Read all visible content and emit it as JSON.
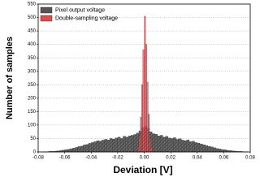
{
  "chart_data": {
    "type": "histogram",
    "x_label": "Deviation [V]",
    "y_label": "Number of samples",
    "xlim": [
      -0.08,
      0.08
    ],
    "ylim": [
      0,
      550
    ],
    "xticks": [
      -0.08,
      -0.06,
      -0.04,
      -0.02,
      {
        "value": 0,
        "label": "0.00"
      },
      0.02,
      0.04,
      0.06,
      0.08
    ],
    "yticks": [
      0,
      50,
      100,
      150,
      200,
      250,
      300,
      350,
      400,
      450,
      500,
      550
    ],
    "grid": true,
    "legend": "upper left",
    "series": [
      {
        "name": "Pixel output voltage",
        "color": "#555555",
        "bins": [
          -0.08,
          -0.078,
          -0.076,
          -0.074,
          -0.072,
          -0.07,
          -0.068,
          -0.066,
          -0.064,
          -0.062,
          -0.06,
          -0.058,
          -0.056,
          -0.054,
          -0.052,
          -0.05,
          -0.048,
          -0.046,
          -0.044,
          -0.042,
          -0.04,
          -0.038,
          -0.036,
          -0.034,
          -0.032,
          -0.03,
          -0.028,
          -0.026,
          -0.024,
          -0.022,
          -0.02,
          -0.018,
          -0.016,
          -0.014,
          -0.012,
          -0.01,
          -0.008,
          -0.006,
          -0.004,
          -0.002,
          0,
          0.002,
          0.004,
          0.006,
          0.008,
          0.01,
          0.012,
          0.014,
          0.016,
          0.018,
          0.02,
          0.022,
          0.024,
          0.026,
          0.028,
          0.03,
          0.032,
          0.034,
          0.036,
          0.038,
          0.04,
          0.042,
          0.044,
          0.046,
          0.048,
          0.05,
          0.052,
          0.054,
          0.056,
          0.058,
          0.06,
          0.062,
          0.064,
          0.066,
          0.068,
          0.07,
          0.072,
          0.074,
          0.076,
          0.078,
          0.08
        ],
        "values": [
          0,
          0,
          1,
          1,
          2,
          2,
          3,
          4,
          5,
          7,
          8,
          10,
          12,
          14,
          17,
          20,
          22,
          26,
          28,
          32,
          35,
          38,
          42,
          40,
          44,
          47,
          45,
          50,
          48,
          52,
          55,
          50,
          58,
          55,
          60,
          62,
          65,
          70,
          78,
          90,
          95,
          88,
          75,
          68,
          66,
          60,
          62,
          55,
          58,
          52,
          50,
          53,
          47,
          49,
          44,
          42,
          45,
          38,
          40,
          35,
          33,
          30,
          27,
          24,
          21,
          19,
          16,
          13,
          11,
          9,
          8,
          6,
          5,
          4,
          3,
          2,
          2,
          1,
          1,
          0
        ]
      },
      {
        "name": "Double-sampling voltage",
        "color": "#e8474c",
        "bins": [
          -0.006,
          -0.005,
          -0.004,
          -0.003,
          -0.002,
          -0.001,
          0,
          0.001,
          0.002,
          0.003,
          0.004,
          0.005,
          0.006
        ],
        "values": [
          5,
          20,
          60,
          130,
          250,
          380,
          505,
          400,
          260,
          140,
          50,
          15
        ]
      }
    ]
  }
}
